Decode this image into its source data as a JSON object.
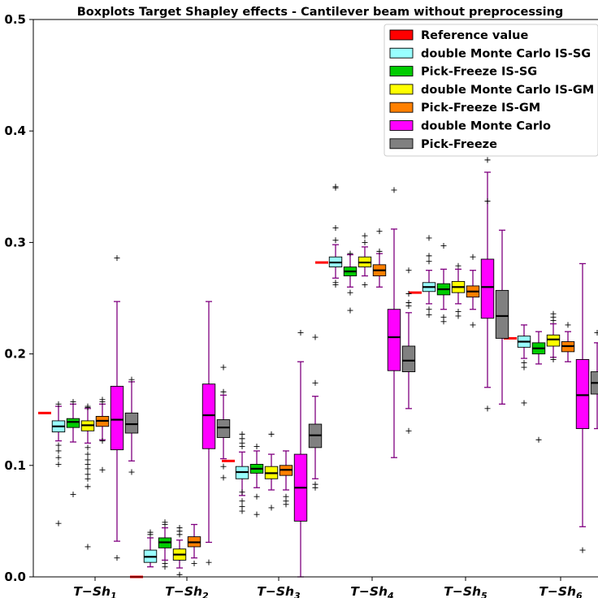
{
  "chart_data": {
    "type": "box",
    "title": "Boxplots Target Shapley effects - Cantilever beam without preprocessing",
    "xlabel": "",
    "ylabel": "",
    "ylim": [
      0.0,
      0.5
    ],
    "yticks": [
      "0.0",
      "0.1",
      "0.2",
      "0.3",
      "0.4",
      "0.5"
    ],
    "ytick_values": [
      0.0,
      0.1,
      0.2,
      0.3,
      0.4,
      0.5
    ],
    "categories": [
      "T−Sh",
      "T−Sh",
      "T−Sh",
      "T−Sh",
      "T−Sh",
      "T−Sh"
    ],
    "category_subscripts": [
      "1",
      "2",
      "3",
      "4",
      "5",
      "6"
    ],
    "grid": false,
    "legend_position": "top-right",
    "reference": {
      "name": "Reference value",
      "color": "#ff0000",
      "values": [
        0.147,
        0.0,
        0.104,
        0.282,
        0.255,
        0.214
      ]
    },
    "series": [
      {
        "name": "double Monte Carlo IS-SG",
        "color": "#99ffff",
        "boxes": [
          {
            "whislo": 0.122,
            "q1": 0.13,
            "med": 0.135,
            "q3": 0.14,
            "whishi": 0.153,
            "fliers": [
              0.048,
              0.101,
              0.107,
              0.113,
              0.118,
              0.155
            ]
          },
          {
            "whislo": 0.009,
            "q1": 0.013,
            "med": 0.018,
            "q3": 0.024,
            "whishi": 0.035,
            "fliers": [
              0.038,
              0.04
            ]
          },
          {
            "whislo": 0.073,
            "q1": 0.088,
            "med": 0.094,
            "q3": 0.099,
            "whishi": 0.112,
            "fliers": [
              0.059,
              0.063,
              0.068,
              0.076,
              0.117,
              0.12,
              0.124,
              0.128
            ]
          },
          {
            "whislo": 0.268,
            "q1": 0.278,
            "med": 0.282,
            "q3": 0.287,
            "whishi": 0.298,
            "fliers": [
              0.262,
              0.264,
              0.302,
              0.313,
              0.349,
              0.35
            ]
          },
          {
            "whislo": 0.245,
            "q1": 0.256,
            "med": 0.26,
            "q3": 0.264,
            "whishi": 0.275,
            "fliers": [
              0.235,
              0.24,
              0.283,
              0.288,
              0.304
            ]
          },
          {
            "whislo": 0.196,
            "q1": 0.206,
            "med": 0.211,
            "q3": 0.216,
            "whishi": 0.226,
            "fliers": [
              0.156,
              0.188,
              0.192
            ]
          }
        ]
      },
      {
        "name": "Pick-Freeze IS-SG",
        "color": "#00cc00",
        "boxes": [
          {
            "whislo": 0.121,
            "q1": 0.134,
            "med": 0.139,
            "q3": 0.142,
            "whishi": 0.155,
            "fliers": [
              0.074,
              0.157
            ]
          },
          {
            "whislo": 0.015,
            "q1": 0.026,
            "med": 0.031,
            "q3": 0.035,
            "whishi": 0.044,
            "fliers": [
              0.009,
              0.012,
              0.047,
              0.049
            ]
          },
          {
            "whislo": 0.08,
            "q1": 0.093,
            "med": 0.097,
            "q3": 0.101,
            "whishi": 0.113,
            "fliers": [
              0.056,
              0.072,
              0.117
            ]
          },
          {
            "whislo": 0.26,
            "q1": 0.27,
            "med": 0.274,
            "q3": 0.278,
            "whishi": 0.289,
            "fliers": [
              0.239,
              0.255,
              0.29
            ]
          },
          {
            "whislo": 0.24,
            "q1": 0.253,
            "med": 0.258,
            "q3": 0.263,
            "whishi": 0.276,
            "fliers": [
              0.229,
              0.233,
              0.297
            ]
          },
          {
            "whislo": 0.191,
            "q1": 0.2,
            "med": 0.205,
            "q3": 0.21,
            "whishi": 0.22,
            "fliers": [
              0.123
            ]
          }
        ]
      },
      {
        "name": "double Monte Carlo IS-GM",
        "color": "#ffff00",
        "boxes": [
          {
            "whislo": 0.12,
            "q1": 0.131,
            "med": 0.136,
            "q3": 0.14,
            "whishi": 0.151,
            "fliers": [
              0.027,
              0.081,
              0.088,
              0.092,
              0.097,
              0.101,
              0.105,
              0.11,
              0.116,
              0.152,
              0.153
            ]
          },
          {
            "whislo": 0.008,
            "q1": 0.015,
            "med": 0.02,
            "q3": 0.025,
            "whishi": 0.033,
            "fliers": [
              0.002,
              0.038,
              0.041,
              0.044
            ]
          },
          {
            "whislo": 0.078,
            "q1": 0.088,
            "med": 0.093,
            "q3": 0.099,
            "whishi": 0.11,
            "fliers": [
              0.062,
              0.128
            ]
          },
          {
            "whislo": 0.27,
            "q1": 0.278,
            "med": 0.282,
            "q3": 0.287,
            "whishi": 0.296,
            "fliers": [
              0.262,
              0.3,
              0.306
            ]
          },
          {
            "whislo": 0.245,
            "q1": 0.255,
            "med": 0.26,
            "q3": 0.265,
            "whishi": 0.276,
            "fliers": [
              0.234,
              0.238,
              0.279
            ]
          },
          {
            "whislo": 0.197,
            "q1": 0.207,
            "med": 0.213,
            "q3": 0.217,
            "whishi": 0.227,
            "fliers": [
              0.195,
              0.23,
              0.233,
              0.236
            ]
          }
        ]
      },
      {
        "name": "Pick-Freeze IS-GM",
        "color": "#ff8000",
        "boxes": [
          {
            "whislo": 0.123,
            "q1": 0.135,
            "med": 0.14,
            "q3": 0.144,
            "whishi": 0.155,
            "fliers": [
              0.096,
              0.122,
              0.157,
              0.159
            ]
          },
          {
            "whislo": 0.017,
            "q1": 0.027,
            "med": 0.031,
            "q3": 0.036,
            "whishi": 0.047,
            "fliers": [
              0.012
            ]
          },
          {
            "whislo": 0.078,
            "q1": 0.091,
            "med": 0.096,
            "q3": 0.1,
            "whishi": 0.113,
            "fliers": [
              0.065,
              0.068,
              0.072
            ]
          },
          {
            "whislo": 0.26,
            "q1": 0.27,
            "med": 0.275,
            "q3": 0.28,
            "whishi": 0.29,
            "fliers": [
              0.292,
              0.31
            ]
          },
          {
            "whislo": 0.24,
            "q1": 0.251,
            "med": 0.256,
            "q3": 0.261,
            "whishi": 0.275,
            "fliers": [
              0.226,
              0.287
            ]
          },
          {
            "whislo": 0.193,
            "q1": 0.202,
            "med": 0.207,
            "q3": 0.211,
            "whishi": 0.22,
            "fliers": [
              0.226
            ]
          }
        ]
      },
      {
        "name": "double Monte Carlo",
        "color": "#ff00ff",
        "boxes": [
          {
            "whislo": 0.032,
            "q1": 0.114,
            "med": 0.141,
            "q3": 0.171,
            "whishi": 0.247,
            "fliers": [
              0.017,
              0.286
            ]
          },
          {
            "whislo": 0.031,
            "q1": 0.115,
            "med": 0.145,
            "q3": 0.173,
            "whishi": 0.247,
            "fliers": [
              0.013
            ]
          },
          {
            "whislo": 0.0,
            "q1": 0.05,
            "med": 0.08,
            "q3": 0.11,
            "whishi": 0.193,
            "fliers": [
              0.219
            ]
          },
          {
            "whislo": 0.107,
            "q1": 0.185,
            "med": 0.215,
            "q3": 0.24,
            "whishi": 0.312,
            "fliers": [
              0.347
            ]
          },
          {
            "whislo": 0.17,
            "q1": 0.232,
            "med": 0.26,
            "q3": 0.285,
            "whishi": 0.363,
            "fliers": [
              0.151,
              0.337,
              0.374
            ]
          },
          {
            "whislo": 0.045,
            "q1": 0.133,
            "med": 0.163,
            "q3": 0.195,
            "whishi": 0.281,
            "fliers": [
              0.024
            ]
          }
        ]
      },
      {
        "name": "Pick-Freeze",
        "color": "#808080",
        "boxes": [
          {
            "whislo": 0.104,
            "q1": 0.129,
            "med": 0.137,
            "q3": 0.147,
            "whishi": 0.175,
            "fliers": [
              0.094,
              0.177
            ]
          },
          {
            "whislo": 0.106,
            "q1": 0.125,
            "med": 0.134,
            "q3": 0.141,
            "whishi": 0.163,
            "fliers": [
              0.089,
              0.099,
              0.166,
              0.188
            ]
          },
          {
            "whislo": 0.088,
            "q1": 0.116,
            "med": 0.127,
            "q3": 0.137,
            "whishi": 0.162,
            "fliers": [
              0.08,
              0.083,
              0.174,
              0.215
            ]
          },
          {
            "whislo": 0.151,
            "q1": 0.184,
            "med": 0.194,
            "q3": 0.207,
            "whishi": 0.237,
            "fliers": [
              0.131,
              0.243,
              0.246,
              0.254,
              0.275
            ]
          },
          {
            "whislo": 0.155,
            "q1": 0.214,
            "med": 0.234,
            "q3": 0.257,
            "whishi": 0.311,
            "fliers": []
          },
          {
            "whislo": 0.133,
            "q1": 0.164,
            "med": 0.174,
            "q3": 0.184,
            "whishi": 0.21,
            "fliers": [
              0.219
            ]
          }
        ]
      }
    ]
  }
}
